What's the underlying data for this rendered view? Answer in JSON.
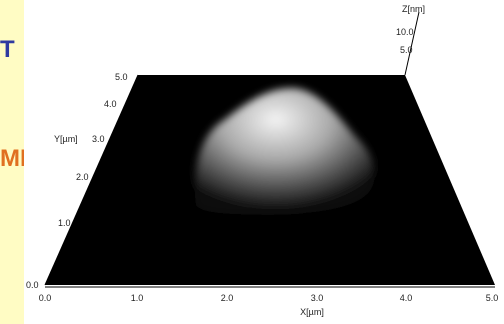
{
  "slide": {
    "fragments": [
      "T",
      "MI"
    ]
  },
  "plot": {
    "z_axis": {
      "label": "Z[nm]",
      "ticks": [
        "10.0",
        "5.0"
      ]
    },
    "y_axis": {
      "label": "Y[µm]",
      "ticks": [
        "0.0",
        "1.0",
        "2.0",
        "3.0",
        "4.0",
        "5.0"
      ]
    },
    "x_axis": {
      "label": "X[µm]",
      "ticks": [
        "0.0",
        "1.0",
        "2.0",
        "3.0",
        "4.0",
        "5.0"
      ]
    }
  }
}
